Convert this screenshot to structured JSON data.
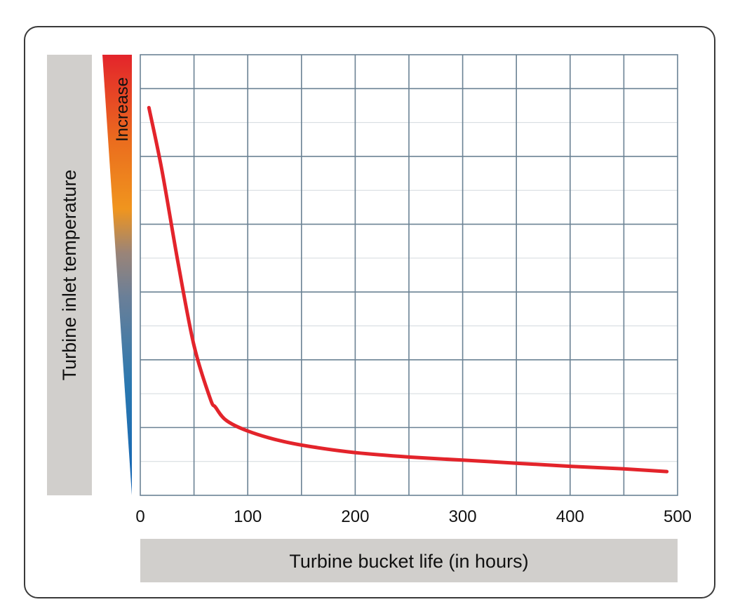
{
  "chart_data": {
    "type": "line",
    "xlabel": "Turbine bucket life (in hours)",
    "ylabel": "Turbine inlet temperature",
    "y_indicator_label": "Increase",
    "x_ticks": [
      0,
      100,
      200,
      300,
      400,
      500
    ],
    "xlim": [
      0,
      500
    ],
    "ylim": [
      0,
      1
    ],
    "grid": true,
    "series": [
      {
        "color": "#e3242b",
        "x": [
          8,
          20,
          35,
          50,
          65,
          70,
          80,
          100,
          130,
          160,
          200,
          250,
          300,
          350,
          400,
          450,
          490
        ],
        "y": [
          0.88,
          0.74,
          0.53,
          0.34,
          0.22,
          0.2,
          0.17,
          0.146,
          0.124,
          0.11,
          0.097,
          0.087,
          0.08,
          0.073,
          0.066,
          0.06,
          0.054
        ]
      }
    ],
    "indicator_gradient": [
      "#1464b4",
      "#2a78b0",
      "#6a7f98",
      "#9a8478",
      "#f0951e",
      "#eb6e1e",
      "#e3242b"
    ]
  }
}
